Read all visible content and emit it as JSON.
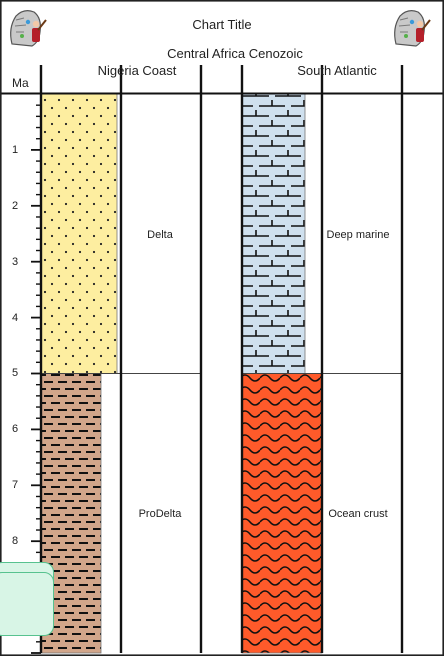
{
  "chart_title": "Chart Title",
  "region": "Central Africa Cenozoic",
  "axis": {
    "label": "Ma",
    "ticks": [
      "1",
      "2",
      "3",
      "4",
      "5",
      "6",
      "7",
      "8"
    ],
    "min": 0,
    "max": 10
  },
  "columns": [
    {
      "name": "Nigeria Coast",
      "units": [
        {
          "lithology": "sand",
          "from": 0,
          "to": 5,
          "environment": "Delta",
          "fill": "#fdeea0"
        },
        {
          "lithology": "shale",
          "from": 5,
          "to": 10,
          "environment": "ProDelta",
          "fill": "#d2a68a"
        }
      ]
    },
    {
      "name": "South Atlantic",
      "units": [
        {
          "lithology": "marl",
          "from": 0,
          "to": 5,
          "environment": "Deep marine",
          "fill": "#cfe0ee"
        },
        {
          "lithology": "basalt",
          "from": 5,
          "to": 10,
          "environment": "Ocean crust",
          "fill": "#ff5a2a"
        }
      ]
    }
  ],
  "logos": [
    "rock-mascot-logo-left",
    "rock-mascot-logo-right"
  ]
}
